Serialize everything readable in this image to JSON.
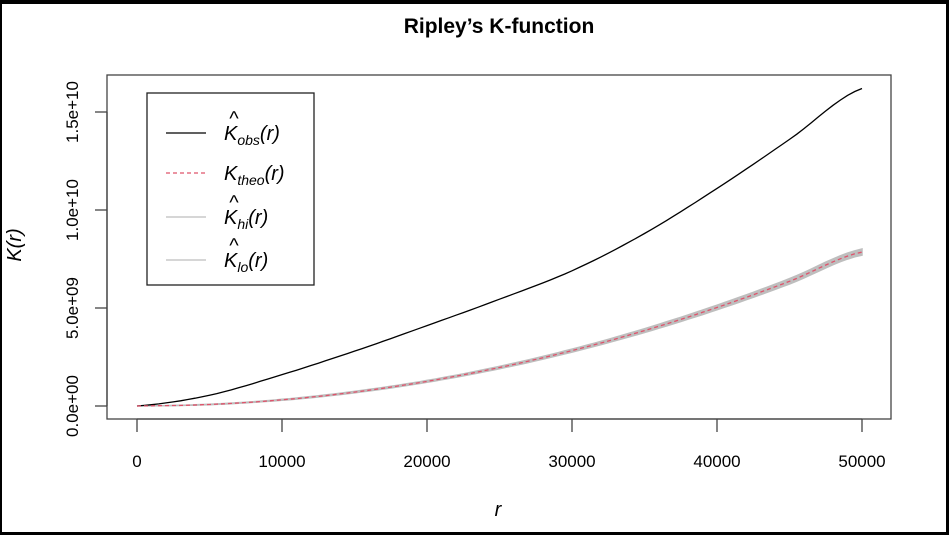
{
  "chart_data": {
    "type": "line",
    "title": "Ripley’s K-function",
    "xlabel": "r",
    "ylabel": "K(r)",
    "xlim": [
      0,
      50000
    ],
    "ylim": [
      0,
      16200000000
    ],
    "x_ticks": [
      0,
      10000,
      20000,
      30000,
      40000,
      50000
    ],
    "x_tick_labels": [
      "0",
      "10000",
      "20000",
      "30000",
      "40000",
      "50000"
    ],
    "y_ticks": [
      0,
      5000000000,
      10000000000,
      15000000000
    ],
    "y_tick_labels": [
      "0.0e+00",
      "5.0e+09",
      "1.0e+10",
      "1.5e+10"
    ],
    "grid": false,
    "legend_position": "top-left",
    "x": [
      0,
      5000,
      10000,
      15000,
      20000,
      25000,
      30000,
      35000,
      40000,
      45000,
      50000
    ],
    "series": [
      {
        "name": "K_obs(r)",
        "hat": true,
        "sub": "obs",
        "color": "#000000",
        "style": "solid",
        "values": [
          0,
          550000000,
          1600000000,
          2800000000,
          4100000000,
          5450000000,
          6900000000,
          8800000000,
          11100000000,
          13600000000,
          16200000000
        ]
      },
      {
        "name": "K_theo(r)",
        "hat": false,
        "sub": "theo",
        "color": "#DF536B",
        "style": "dashed",
        "values": [
          0,
          78500000,
          314000000,
          707000000,
          1257000000,
          1963000000,
          2827000000,
          3848000000,
          5027000000,
          6362000000,
          7854000000
        ]
      },
      {
        "name": "K_hi(r)",
        "hat": true,
        "sub": "hi",
        "color": "#BEBEBE",
        "style": "solid",
        "values": [
          0,
          90000000,
          340000000,
          745000000,
          1305000000,
          2025000000,
          2905000000,
          3945000000,
          5145000000,
          6500000000,
          8010000000
        ]
      },
      {
        "name": "K_lo(r)",
        "hat": true,
        "sub": "lo",
        "color": "#BEBEBE",
        "style": "solid",
        "values": [
          0,
          67000000,
          290000000,
          670000000,
          1210000000,
          1900000000,
          2750000000,
          3750000000,
          4910000000,
          6225000000,
          7700000000
        ]
      }
    ]
  }
}
